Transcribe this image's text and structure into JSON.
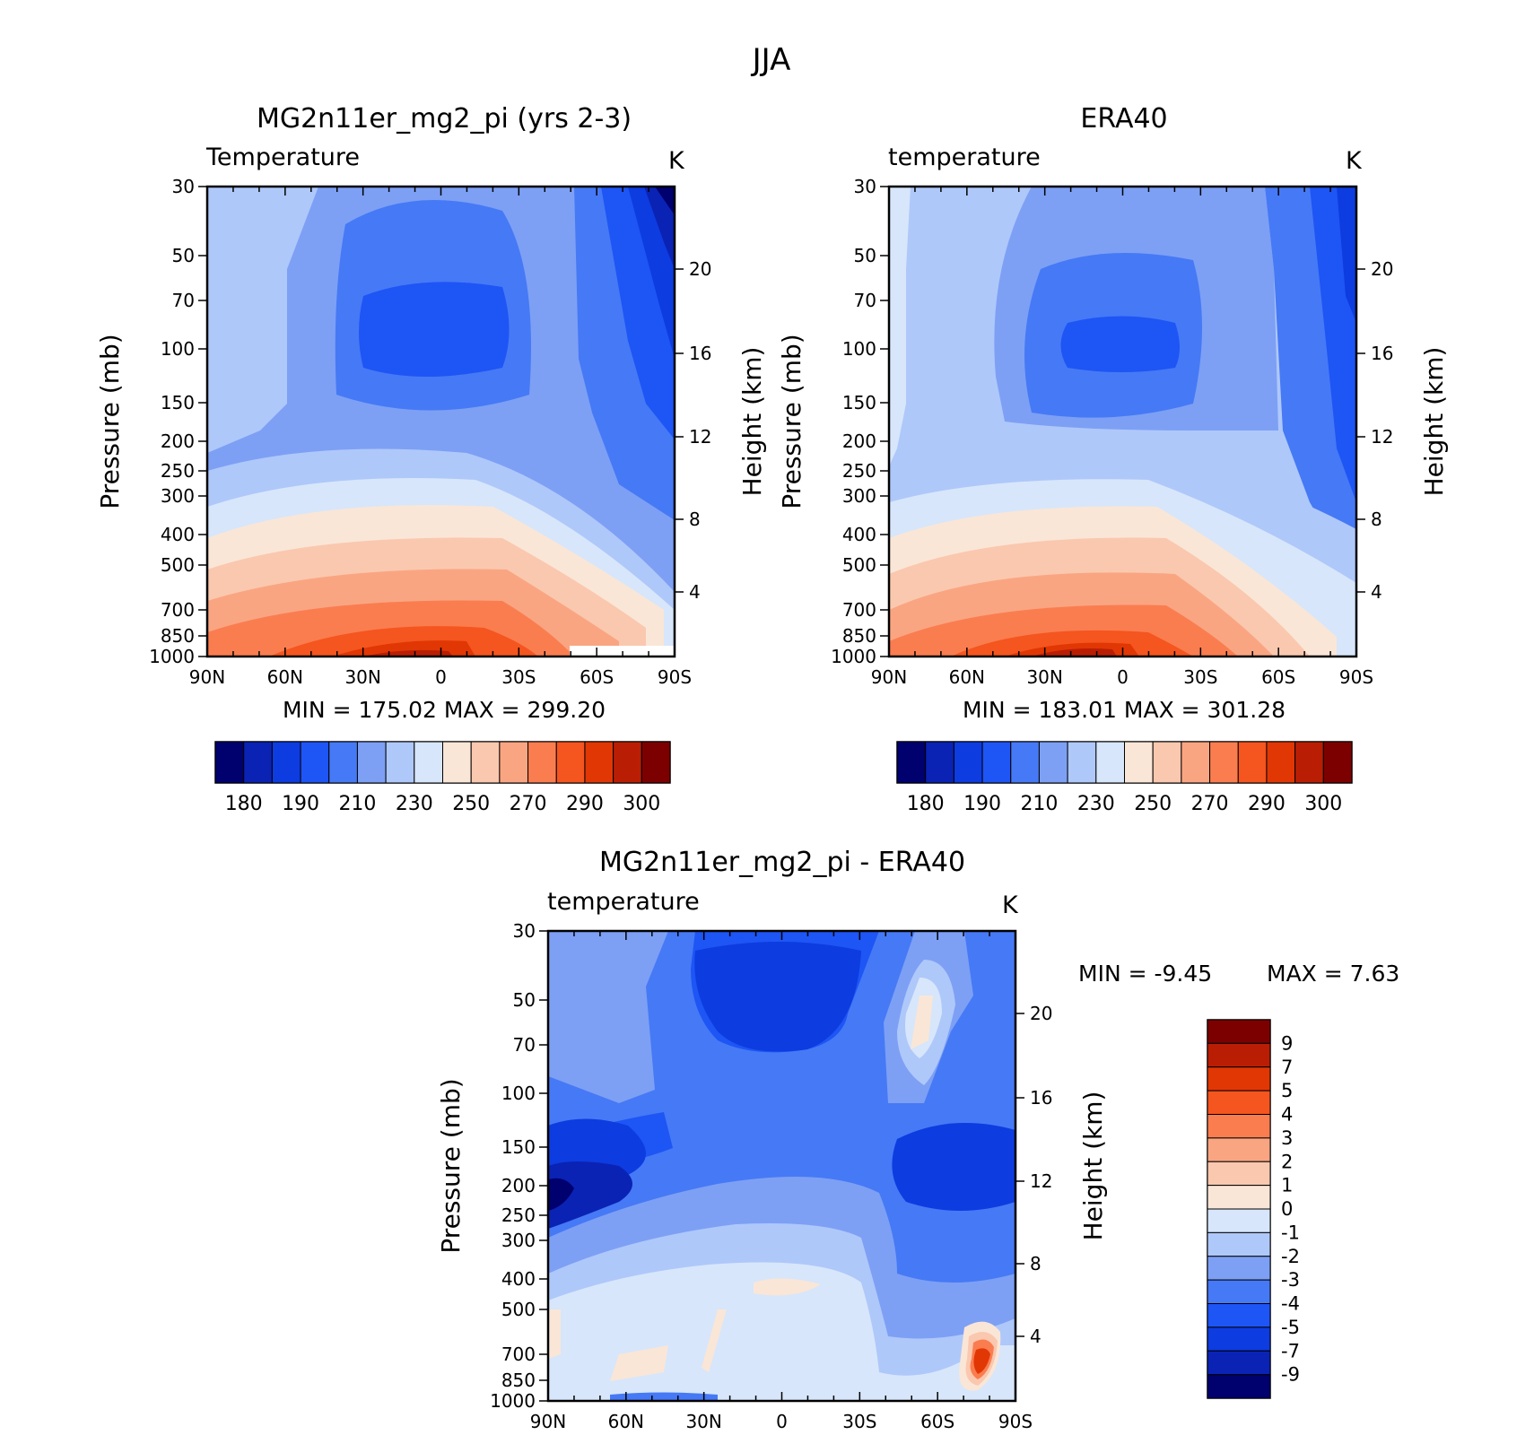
{
  "figure": {
    "title": "JJA"
  },
  "chart_data": [
    {
      "type": "heatmap",
      "title": "MG2n11er_mg2_pi (yrs 2-3)",
      "subtitle_left": "Temperature",
      "subtitle_right": "K",
      "ylabel": "Pressure (mb)",
      "ylabel_right": "Height (km)",
      "x_ticks": [
        "90N",
        "60N",
        "30N",
        "0",
        "30S",
        "60S",
        "90S"
      ],
      "y_ticks": [
        "30",
        "50",
        "70",
        "100",
        "150",
        "200",
        "250",
        "300",
        "400",
        "500",
        "700",
        "850",
        "1000"
      ],
      "y_ticks_right": [
        "20",
        "16",
        "12",
        "8",
        "4"
      ],
      "stats": "MIN = 175.02 MAX = 299.20",
      "colorbar": {
        "labels": [
          "180",
          "190",
          "210",
          "230",
          "250",
          "270",
          "290",
          "300"
        ],
        "colors": [
          "#00006e",
          "#0a23b4",
          "#0d3ce0",
          "#1e55f5",
          "#4679f5",
          "#7da0f5",
          "#afc8fa",
          "#d7e6fa",
          "#fae6d7",
          "#fac8af",
          "#faa582",
          "#fa7d50",
          "#f5551e",
          "#e13705",
          "#b91e05",
          "#7d0000"
        ]
      }
    },
    {
      "type": "heatmap",
      "title": "ERA40",
      "subtitle_left": "temperature",
      "subtitle_right": "K",
      "ylabel": "Pressure (mb)",
      "ylabel_right": "Height (km)",
      "x_ticks": [
        "90N",
        "60N",
        "30N",
        "0",
        "30S",
        "60S",
        "90S"
      ],
      "y_ticks": [
        "30",
        "50",
        "70",
        "100",
        "150",
        "200",
        "250",
        "300",
        "400",
        "500",
        "700",
        "850",
        "1000"
      ],
      "y_ticks_right": [
        "20",
        "16",
        "12",
        "8",
        "4"
      ],
      "stats": "MIN = 183.01 MAX = 301.28",
      "colorbar": {
        "labels": [
          "180",
          "190",
          "210",
          "230",
          "250",
          "270",
          "290",
          "300"
        ],
        "colors": [
          "#00006e",
          "#0a23b4",
          "#0d3ce0",
          "#1e55f5",
          "#4679f5",
          "#7da0f5",
          "#afc8fa",
          "#d7e6fa",
          "#fae6d7",
          "#fac8af",
          "#faa582",
          "#fa7d50",
          "#f5551e",
          "#e13705",
          "#b91e05",
          "#7d0000"
        ]
      }
    },
    {
      "type": "heatmap",
      "title": "MG2n11er_mg2_pi - ERA40",
      "subtitle_left": "temperature",
      "subtitle_right": "K",
      "ylabel": "Pressure (mb)",
      "ylabel_right": "Height (km)",
      "x_ticks": [
        "90N",
        "60N",
        "30N",
        "0",
        "30S",
        "60S",
        "90S"
      ],
      "y_ticks": [
        "30",
        "50",
        "70",
        "100",
        "150",
        "200",
        "250",
        "300",
        "400",
        "500",
        "700",
        "850",
        "1000"
      ],
      "y_ticks_right": [
        "20",
        "16",
        "12",
        "8",
        "4"
      ],
      "stats_min": "MIN = -9.45",
      "stats_max": "MAX = 7.63",
      "colorbar": {
        "labels": [
          "9",
          "7",
          "5",
          "4",
          "3",
          "2",
          "1",
          "0",
          "-1",
          "-2",
          "-3",
          "-4",
          "-5",
          "-7",
          "-9"
        ],
        "colors": [
          "#7d0000",
          "#b91e05",
          "#e13705",
          "#f5551e",
          "#fa7d50",
          "#faa582",
          "#fac8af",
          "#fae6d7",
          "#d7e6fa",
          "#afc8fa",
          "#7da0f5",
          "#4679f5",
          "#1e55f5",
          "#0d3ce0",
          "#0a23b4",
          "#00006e"
        ]
      }
    }
  ]
}
